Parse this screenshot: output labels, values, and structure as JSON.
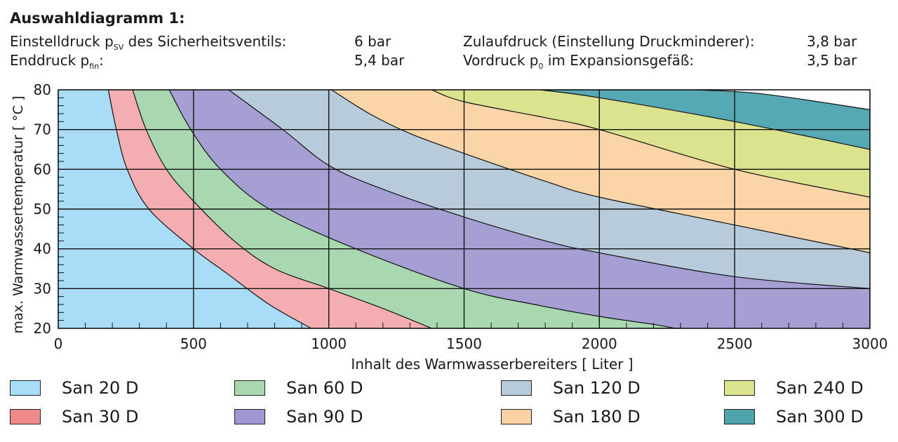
{
  "header": {
    "title": "Auswahldiagramm 1:",
    "rows": [
      {
        "label_pre": "Einstelldruck p",
        "label_sub": "SV",
        "label_post": " des Sicherheitsventils:",
        "value": "6 bar",
        "label2_pre": "Zulaufdruck (Einstellung Druckminderer):",
        "label2_sub": "",
        "label2_post": "",
        "value2": "3,8 bar"
      },
      {
        "label_pre": "Enddruck p",
        "label_sub": "fin",
        "label_post": ":",
        "value": "5,4 bar",
        "label2_pre": "Vordruck p",
        "label2_sub": "0",
        "label2_post": " im Expansionsgefäß:",
        "value2": "3,5 bar"
      }
    ]
  },
  "chart_data": {
    "type": "area",
    "xlabel": "Inhalt des Warmwasserbereiters [ Liter ]",
    "ylabel": "max. Warmwassertemperatur [ °C ]",
    "xlim": [
      0,
      3000
    ],
    "ylim": [
      20,
      80
    ],
    "xticks": [
      "0",
      "500",
      "1000",
      "1500",
      "2000",
      "2500",
      "3000"
    ],
    "yticks": [
      "20",
      "30",
      "40",
      "50",
      "60",
      "70",
      "80"
    ],
    "grid": true,
    "legend_position": "bottom",
    "boundary_curves": [
      {
        "between": [
          "San 20 D",
          "San 30 D"
        ],
        "points": [
          [
            185,
            80
          ],
          [
            215,
            70
          ],
          [
            255,
            60
          ],
          [
            335,
            50
          ],
          [
            500,
            40
          ],
          [
            620,
            34
          ],
          [
            780,
            26
          ],
          [
            935,
            20
          ]
        ]
      },
      {
        "between": [
          "San 30 D",
          "San 60 D"
        ],
        "points": [
          [
            275,
            80
          ],
          [
            325,
            70
          ],
          [
            400,
            60
          ],
          [
            500,
            52
          ],
          [
            650,
            42
          ],
          [
            800,
            35
          ],
          [
            1000,
            30
          ],
          [
            1200,
            25
          ],
          [
            1380,
            20
          ]
        ]
      },
      {
        "between": [
          "San 60 D",
          "San 90 D"
        ],
        "points": [
          [
            410,
            80
          ],
          [
            490,
            70
          ],
          [
            600,
            60
          ],
          [
            780,
            50
          ],
          [
            1100,
            40
          ],
          [
            1500,
            30
          ],
          [
            1760,
            26
          ],
          [
            2000,
            23
          ],
          [
            2200,
            21
          ],
          [
            2280,
            20
          ]
        ]
      },
      {
        "between": [
          "San 90 D",
          "San 120 D"
        ],
        "points": [
          [
            630,
            80
          ],
          [
            830,
            70
          ],
          [
            1000,
            61
          ],
          [
            1200,
            55
          ],
          [
            1500,
            48
          ],
          [
            1800,
            42
          ],
          [
            2000,
            39
          ],
          [
            2500,
            33
          ],
          [
            3000,
            30
          ]
        ]
      },
      {
        "between": [
          "San 120 D",
          "San 180 D"
        ],
        "points": [
          [
            1010,
            80
          ],
          [
            1150,
            74
          ],
          [
            1300,
            69
          ],
          [
            1500,
            64
          ],
          [
            1800,
            57
          ],
          [
            2000,
            53
          ],
          [
            2500,
            46
          ],
          [
            3000,
            39
          ]
        ]
      },
      {
        "between": [
          "San 180 D",
          "San 240 D"
        ],
        "points": [
          [
            1380,
            80
          ],
          [
            1500,
            77
          ],
          [
            1800,
            73
          ],
          [
            2000,
            70
          ],
          [
            2500,
            60
          ],
          [
            3000,
            53
          ]
        ]
      },
      {
        "between": [
          "San 240 D",
          "San 300 D"
        ],
        "points": [
          [
            1780,
            80
          ],
          [
            2000,
            78
          ],
          [
            2500,
            72
          ],
          [
            3000,
            65
          ]
        ]
      },
      {
        "between": [
          "San 300 D",
          "white"
        ],
        "points": [
          [
            2350,
            80
          ],
          [
            2600,
            79
          ],
          [
            3000,
            75
          ]
        ]
      }
    ],
    "series": [
      {
        "name": "San 20 D",
        "color": "#a8dcf7"
      },
      {
        "name": "San 30 D",
        "color": "#f4aeb1"
      },
      {
        "name": "San 60 D",
        "color": "#a8d7b0"
      },
      {
        "name": "San 90 D",
        "color": "#a59fd3"
      },
      {
        "name": "San 120 D",
        "color": "#b7cbda"
      },
      {
        "name": "San 180 D",
        "color": "#fbd4a8"
      },
      {
        "name": "San 240 D",
        "color": "#dbe38f"
      },
      {
        "name": "San 300 D",
        "color": "#56a8b4"
      }
    ]
  },
  "legend": [
    {
      "label": "San 20 D",
      "color": "#a8dcf7"
    },
    {
      "label": "San 60 D",
      "color": "#a8d7b0"
    },
    {
      "label": "San 120 D",
      "color": "#b7cbda"
    },
    {
      "label": "San 240 D",
      "color": "#dbe38f"
    },
    {
      "label": "San 30 D",
      "color": "#f08a8a"
    },
    {
      "label": "San 90 D",
      "color": "#9f97d2"
    },
    {
      "label": "San 180 D",
      "color": "#fbd2a4"
    },
    {
      "label": "San 300 D",
      "color": "#4ea3ad"
    }
  ]
}
